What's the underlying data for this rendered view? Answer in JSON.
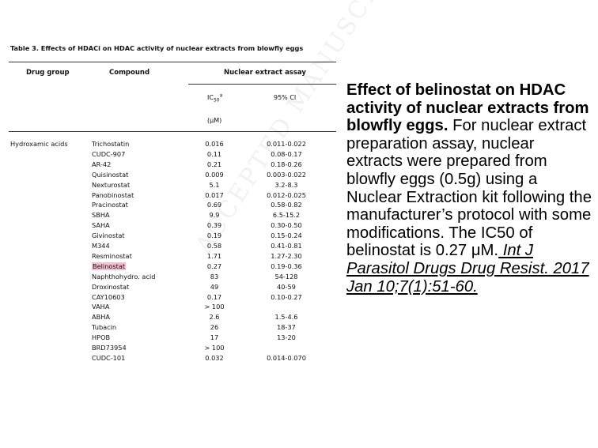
{
  "table": {
    "caption": "Table 3. Effects of HDACi on HDAC activity of nuclear extracts from blowfly eggs",
    "headers": {
      "drug_group": "Drug group",
      "compound": "Compound",
      "assay": "Nuclear extract assay"
    },
    "subheaders": {
      "ic50": "IC50a",
      "ci": "95% CI",
      "unit": "(μM)"
    },
    "watermark": "ACCEPTED MANUSCRIPT",
    "group": "Hydroxamic acids",
    "rows": [
      {
        "compound": "Trichostatin",
        "ic50": "0.016",
        "ci": "0.011-0.022"
      },
      {
        "compound": "CUDC-907",
        "ic50": "0.11",
        "ci": "0.08-0.17"
      },
      {
        "compound": "AR-42",
        "ic50": "0.21",
        "ci": "0.18-0.26"
      },
      {
        "compound": "Quisinostat",
        "ic50": "0.009",
        "ci": "0.003-0.022"
      },
      {
        "compound": "Nexturostat",
        "ic50": "5.1",
        "ci": "3.2-8.3"
      },
      {
        "compound": "Panobinostat",
        "ic50": "0.017",
        "ci": "0.012-0.025"
      },
      {
        "compound": "Pracinostat",
        "ic50": "0.69",
        "ci": "0.58-0.82"
      },
      {
        "compound": "SBHA",
        "ic50": "9.9",
        "ci": "6.5-15.2"
      },
      {
        "compound": "SAHA",
        "ic50": "0.39",
        "ci": "0.30-0.50"
      },
      {
        "compound": "Givinostat",
        "ic50": "0.19",
        "ci": "0.15-0.24"
      },
      {
        "compound": "M344",
        "ic50": "0.58",
        "ci": "0.41-0.81"
      },
      {
        "compound": "Resminostat",
        "ic50": "1.71",
        "ci": "1.27-2.30"
      },
      {
        "compound": "Belinostat",
        "ic50": "0.27",
        "ci": "0.19-0.36",
        "highlight": true
      },
      {
        "compound": "Naphthohydro. acid",
        "ic50": "83",
        "ci": "54-128"
      },
      {
        "compound": "Droxinostat",
        "ic50": "49",
        "ci": "40-59"
      },
      {
        "compound": "CAY10603",
        "ic50": "0.17",
        "ci": "0.10-0.27"
      },
      {
        "compound": "VAHA",
        "ic50": "> 100",
        "ci": ""
      },
      {
        "compound": "ABHA",
        "ic50": "2.6",
        "ci": "1.5-4.6"
      },
      {
        "compound": "Tubacin",
        "ic50": "26",
        "ci": "18-37"
      },
      {
        "compound": "HPOB",
        "ic50": "17",
        "ci": "13-20"
      },
      {
        "compound": "BRD73954",
        "ic50": "> 100",
        "ci": ""
      },
      {
        "compound": "CUDC-101",
        "ic50": "0.032",
        "ci": "0.014-0.070"
      }
    ]
  },
  "caption": {
    "title": "Effect of belinostat on HDAC activity of nuclear extracts from blowfly eggs.",
    "body": " For nuclear extract preparation assay, nuclear extracts were prepared from blowfly eggs (0.5g) using a Nuclear Extraction kit following the manufacturer’s protocol with some modifications. The IC50 of belinostat is 0.27 μM.",
    "citation": " Int J Parasitol Drugs Drug Resist. 2017 Jan 10;7(1):51-60."
  }
}
